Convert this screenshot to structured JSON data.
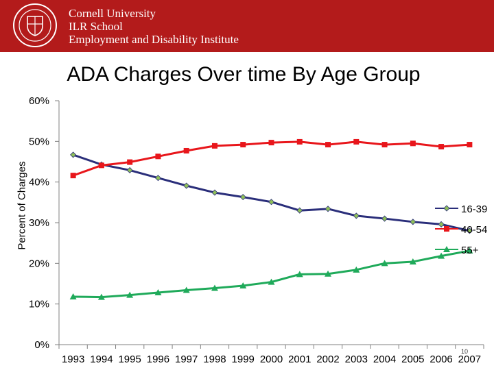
{
  "header": {
    "lines": [
      "Cornell University",
      "ILR School",
      "Employment and Disability Institute"
    ],
    "seal_icon": "cornell-seal-icon",
    "background_color": "#b31b1b"
  },
  "slide": {
    "page_number": "10"
  },
  "chart_data": {
    "type": "line",
    "title": "ADA Charges Over time By Age Group",
    "ylabel": "Percent of Charges",
    "xlabel": "",
    "ylim": [
      0,
      60
    ],
    "y_ticks": [
      "0%",
      "10%",
      "20%",
      "30%",
      "40%",
      "50%",
      "60%"
    ],
    "categories": [
      "1993",
      "1994",
      "1995",
      "1996",
      "1997",
      "1998",
      "1999",
      "2000",
      "2001",
      "2002",
      "2003",
      "2004",
      "2005",
      "2006",
      "2007"
    ],
    "legend_position": "right",
    "grid": false,
    "series": [
      {
        "name": "16-39",
        "color": "#2a2e7a",
        "marker": "diamond",
        "marker_color": "#8fbf5a",
        "values": [
          46.7,
          44.3,
          42.9,
          41.0,
          39.1,
          37.4,
          36.3,
          35.1,
          33.0,
          33.4,
          31.7,
          31.0,
          30.2,
          29.6,
          28.0
        ]
      },
      {
        "name": "40-54",
        "color": "#e8161b",
        "marker": "square",
        "marker_color": "#e8161b",
        "values": [
          41.6,
          44.1,
          44.9,
          46.3,
          47.7,
          48.9,
          49.2,
          49.7,
          49.9,
          49.2,
          49.9,
          49.2,
          49.5,
          48.7,
          49.2
        ]
      },
      {
        "name": "55+",
        "color": "#1faa5a",
        "marker": "triangle",
        "marker_color": "#1faa5a",
        "values": [
          11.8,
          11.7,
          12.2,
          12.8,
          13.4,
          13.9,
          14.5,
          15.4,
          17.3,
          17.4,
          18.4,
          20.0,
          20.4,
          21.8,
          23.1
        ]
      }
    ]
  }
}
